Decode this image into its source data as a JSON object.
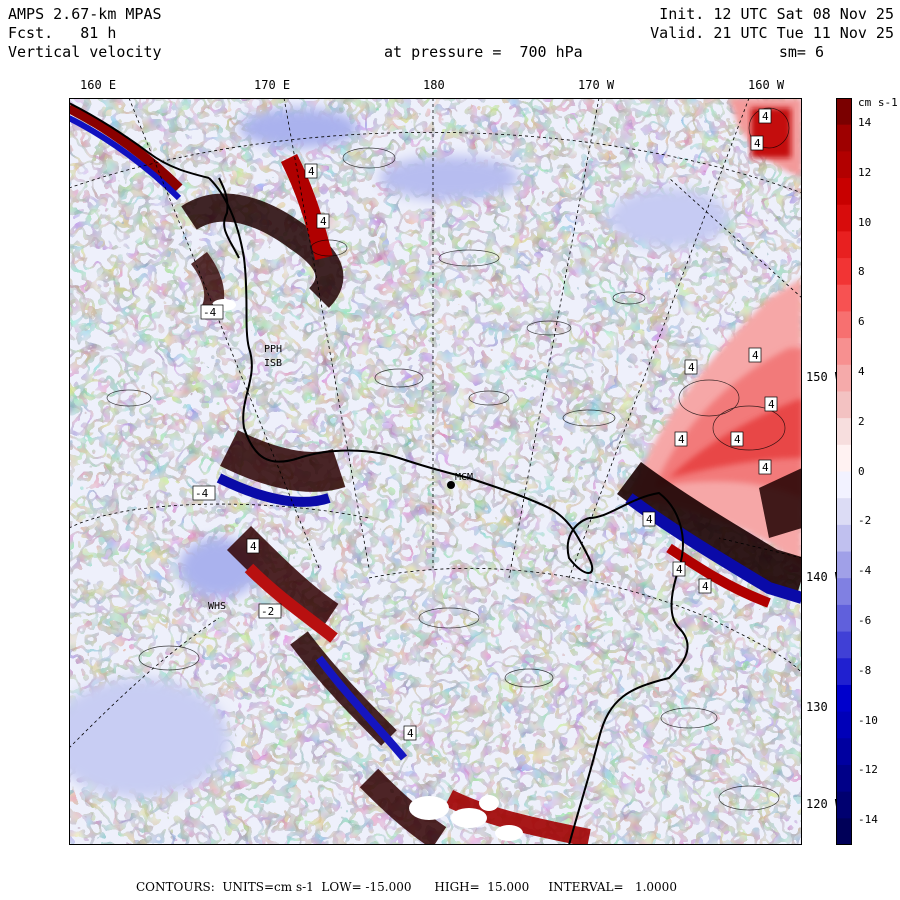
{
  "header": {
    "model": "AMPS 2.67-km MPAS",
    "fcst_label": "Fcst.",
    "fcst_value": "81 h",
    "field": "Vertical velocity",
    "init": "Init. 12 UTC Sat 08 Nov 25",
    "valid": "Valid. 21 UTC Tue 11 Nov 25",
    "pressure": "at pressure =  700 hPa",
    "smooth": "sm= 6"
  },
  "top_ticks": [
    "160 E",
    "170 E",
    "180",
    "170 W",
    "160 W"
  ],
  "right_ticks": [
    "150 W",
    "140 W",
    "130",
    "120 W"
  ],
  "station_labels": [
    "MCM",
    "PPH",
    "ISB",
    "WHS"
  ],
  "colorbar": {
    "units": "cm s-1",
    "labels": [
      "14",
      "12",
      "10",
      "8",
      "6",
      "4",
      "2",
      "0",
      "-2",
      "-4",
      "-6",
      "-8",
      "-10",
      "-12",
      "-14"
    ],
    "colors_top_to_bottom": [
      "#7a0000",
      "#9e0000",
      "#b20000",
      "#c80000",
      "#d80c0c",
      "#e82020",
      "#f23434",
      "#f75252",
      "#f77070",
      "#f79090",
      "#f5aaaa",
      "#f3c2c2",
      "#f7dede",
      "#fff2f2",
      "#f2f2ff",
      "#dcdcf5",
      "#c0c0ef",
      "#a0a0e8",
      "#8080e2",
      "#6060dc",
      "#4040d6",
      "#2020d0",
      "#0000cc",
      "#0000b8",
      "#0000a0",
      "#000088",
      "#000070",
      "#000058"
    ]
  },
  "map_labels": {
    "contour_4": "4",
    "contour_neg4": "-4",
    "contour_neg2": "-2"
  },
  "footer": "CONTOURS:  UNITS=cm s-1  LOW= -15.000      HIGH=  15.000     INTERVAL=   1.0000"
}
